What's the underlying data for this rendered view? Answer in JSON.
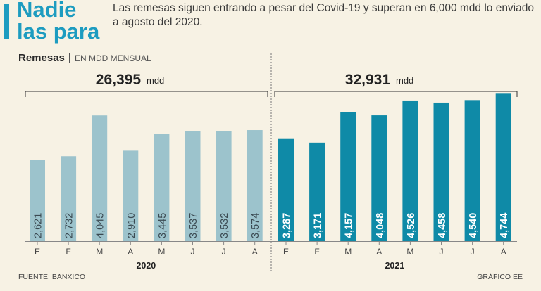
{
  "headline": "Nadie\nlas para",
  "subtitle": "Las remesas siguen entrando a pesar del Covid-19 y superan en 6,000 mdd lo enviado a agosto del 2020.",
  "chart_title": "Remesas",
  "chart_subtitle": "EN MDD MENSUAL",
  "source": "FUENTE: BANXICO",
  "credit": "GRÁFICO EE",
  "colors": {
    "y2020": "#9cc3cc",
    "y2021": "#0f8aa7",
    "label_light": "#3b4a52",
    "label_dark": "#ffffff"
  },
  "chart_data": {
    "type": "bar",
    "ylim": [
      0,
      5000
    ],
    "groups": [
      {
        "year": "2020",
        "total": "26,395",
        "unit": "mdd",
        "categories": [
          "E",
          "F",
          "M",
          "A",
          "M",
          "J",
          "J",
          "A"
        ],
        "values": [
          2621,
          2732,
          4045,
          2910,
          3445,
          3537,
          3532,
          3574
        ],
        "labels": [
          "2,621",
          "2,732",
          "4,045",
          "2,910",
          "3,445",
          "3,537",
          "3,532",
          "3,574"
        ]
      },
      {
        "year": "2021",
        "total": "32,931",
        "unit": "mdd",
        "categories": [
          "E",
          "F",
          "M",
          "A",
          "M",
          "J",
          "J",
          "A"
        ],
        "values": [
          3287,
          3171,
          4157,
          4048,
          4526,
          4458,
          4540,
          4744
        ],
        "labels": [
          "3,287",
          "3,171",
          "4,157",
          "4,048",
          "4,526",
          "4,458",
          "4,540",
          "4,744"
        ]
      }
    ]
  }
}
